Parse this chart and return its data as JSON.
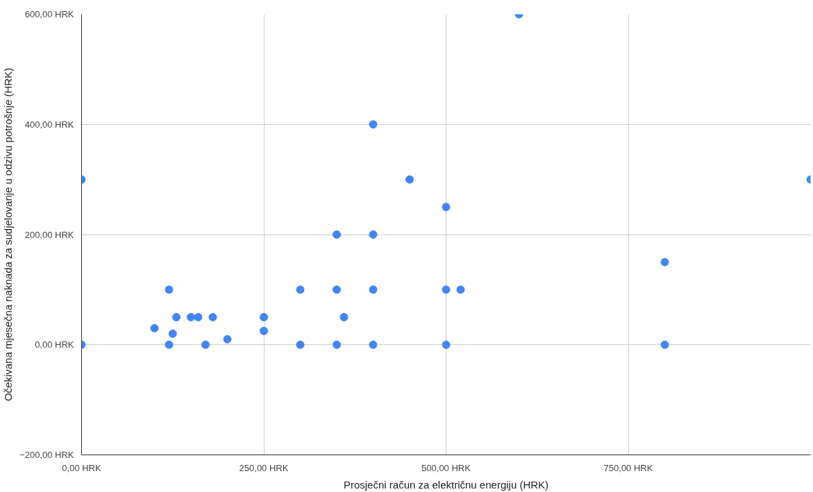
{
  "chart_data": {
    "type": "scatter",
    "xlabel": "Prosječni račun za električnu energiju (HRK)",
    "ylabel": "Očekivana mjesečna naknada za sudjelovanje u odzivu potrošnje (HRK)",
    "x": [
      0,
      0,
      100,
      120,
      120,
      125,
      130,
      150,
      160,
      170,
      180,
      200,
      250,
      250,
      300,
      300,
      350,
      350,
      350,
      360,
      400,
      400,
      400,
      400,
      450,
      500,
      500,
      500,
      520,
      600,
      800,
      800,
      1000
    ],
    "series": [
      {
        "color": "#4285f4",
        "values": [
          300,
          0,
          30,
          100,
          0,
          20,
          50,
          50,
          50,
          0,
          50,
          10,
          50,
          25,
          100,
          0,
          200,
          100,
          0,
          50,
          400,
          200,
          100,
          0,
          300,
          250,
          100,
          0,
          100,
          600,
          150,
          0,
          300
        ]
      }
    ],
    "xlim": [
      0,
      1000
    ],
    "ylim": [
      -200,
      600
    ],
    "xticks": [
      {
        "value": 0,
        "label": "0,00 HRK"
      },
      {
        "value": 250,
        "label": "250,00 HRK"
      },
      {
        "value": 500,
        "label": "500,00 HRK"
      },
      {
        "value": 750,
        "label": "750,00 HRK"
      }
    ],
    "yticks": [
      {
        "value": -200,
        "label": "−200,00 HRK"
      },
      {
        "value": 0,
        "label": "0,00 HRK"
      },
      {
        "value": 200,
        "label": "200,00 HRK"
      },
      {
        "value": 400,
        "label": "400,00 HRK"
      },
      {
        "value": 600,
        "label": "600,00 HRK"
      }
    ],
    "grid": true,
    "marker": "circle"
  }
}
